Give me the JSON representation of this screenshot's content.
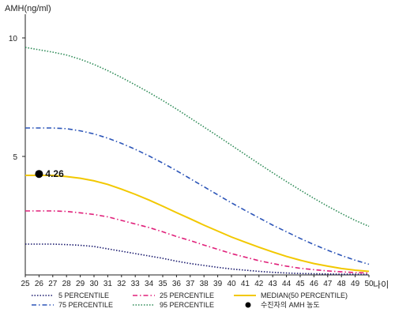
{
  "chart_data": {
    "type": "line",
    "ylabel": "AMH(ng/ml)",
    "xlabel": "나이",
    "xlim": [
      25,
      50
    ],
    "ylim": [
      0,
      11
    ],
    "x": [
      25,
      26,
      27,
      28,
      29,
      30,
      31,
      32,
      33,
      34,
      35,
      36,
      37,
      38,
      39,
      40,
      41,
      42,
      43,
      44,
      45,
      46,
      47,
      48,
      49,
      50
    ],
    "yticks": [
      5,
      10
    ],
    "series": [
      {
        "name": "5 PERCENTILE",
        "color": "#1a1a6e",
        "dash": "dotted",
        "values": [
          1.3,
          1.3,
          1.3,
          1.28,
          1.25,
          1.2,
          1.1,
          1.0,
          0.9,
          0.8,
          0.7,
          0.58,
          0.48,
          0.4,
          0.32,
          0.25,
          0.2,
          0.15,
          0.11,
          0.08,
          0.06,
          0.05,
          0.04,
          0.03,
          0.03,
          0.02
        ]
      },
      {
        "name": "25 PERCENTILE",
        "color": "#e0207a",
        "dash": "dashdot",
        "values": [
          2.7,
          2.7,
          2.7,
          2.68,
          2.62,
          2.55,
          2.45,
          2.3,
          2.15,
          2.0,
          1.82,
          1.62,
          1.45,
          1.26,
          1.08,
          0.9,
          0.75,
          0.6,
          0.48,
          0.37,
          0.28,
          0.22,
          0.17,
          0.13,
          0.1,
          0.08
        ]
      },
      {
        "name": "MEDIAN(50 PERCENTILE)",
        "color": "#f2c800",
        "dash": "solid",
        "values": [
          4.2,
          4.2,
          4.2,
          4.15,
          4.08,
          3.97,
          3.82,
          3.62,
          3.4,
          3.16,
          2.9,
          2.63,
          2.37,
          2.1,
          1.85,
          1.6,
          1.38,
          1.17,
          0.97,
          0.78,
          0.62,
          0.48,
          0.37,
          0.27,
          0.2,
          0.15
        ]
      },
      {
        "name": "75 PERCENTILE",
        "color": "#2c55b8",
        "dash": "dashdot",
        "values": [
          6.2,
          6.2,
          6.2,
          6.17,
          6.08,
          5.95,
          5.77,
          5.55,
          5.3,
          5.02,
          4.72,
          4.4,
          4.06,
          3.72,
          3.38,
          3.04,
          2.72,
          2.41,
          2.1,
          1.82,
          1.54,
          1.28,
          1.04,
          0.82,
          0.62,
          0.45
        ]
      },
      {
        "name": "95 PERCENTILE",
        "color": "#2e8b57",
        "dash": "dotted",
        "values": [
          9.6,
          9.5,
          9.4,
          9.28,
          9.1,
          8.88,
          8.62,
          8.33,
          8.02,
          7.7,
          7.36,
          7.0,
          6.62,
          6.24,
          5.86,
          5.47,
          5.08,
          4.69,
          4.31,
          3.94,
          3.58,
          3.23,
          2.9,
          2.59,
          2.3,
          2.05
        ]
      }
    ],
    "marker": {
      "name": "수진자의 AMH 농도",
      "x": 26,
      "y": 4.26,
      "label": "4.26"
    },
    "legend_position": "bottom"
  }
}
